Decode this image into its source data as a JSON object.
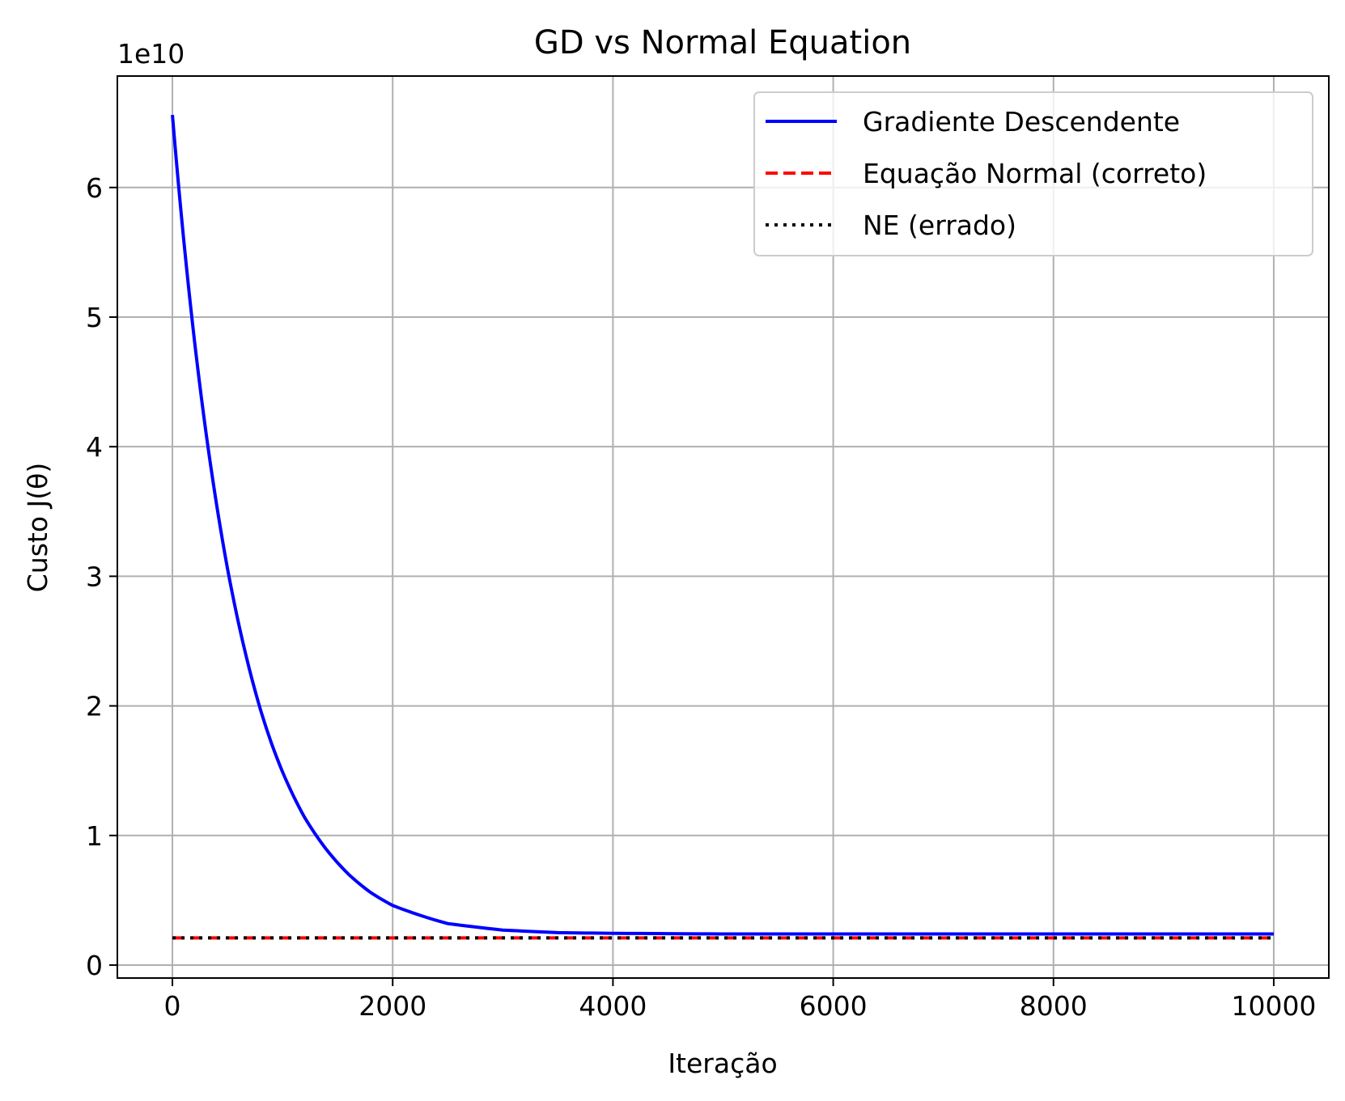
{
  "chart_data": {
    "type": "line",
    "title": "GD vs Normal Equation",
    "xlabel": "Iteração",
    "ylabel": "Custo J(θ)",
    "y_offset_label": "1e10",
    "xlim": [
      -500,
      10500
    ],
    "ylim": [
      -0.1,
      6.86
    ],
    "x_ticks": [
      0,
      2000,
      4000,
      6000,
      8000,
      10000
    ],
    "x_tick_labels": [
      "0",
      "2000",
      "4000",
      "6000",
      "8000",
      "10000"
    ],
    "y_ticks": [
      0,
      1,
      2,
      3,
      4,
      5,
      6
    ],
    "y_tick_labels": [
      "0",
      "1",
      "2",
      "3",
      "4",
      "5",
      "6"
    ],
    "grid": true,
    "legend_position": "top-right",
    "series": [
      {
        "name": "Gradiente Descendente",
        "style": "solid",
        "color": "#0000ff",
        "x": [
          0,
          100,
          200,
          300,
          400,
          500,
          600,
          700,
          800,
          900,
          1000,
          1200,
          1400,
          1600,
          1800,
          2000,
          2500,
          3000,
          3500,
          4000,
          5000,
          6000,
          7000,
          8000,
          9000,
          10000
        ],
        "values": [
          6.56,
          5.62,
          4.82,
          4.14,
          3.56,
          3.06,
          2.64,
          2.28,
          1.97,
          1.71,
          1.49,
          1.14,
          0.89,
          0.7,
          0.56,
          0.46,
          0.32,
          0.27,
          0.25,
          0.245,
          0.24,
          0.24,
          0.24,
          0.24,
          0.24,
          0.24
        ]
      },
      {
        "name": "Equação Normal (correto)",
        "style": "dashed",
        "color": "#ff0000",
        "x": [
          0,
          10000
        ],
        "values": [
          0.21,
          0.21
        ]
      },
      {
        "name": "NE (errado)",
        "style": "dotted",
        "color": "#000000",
        "x": [
          0,
          10000
        ],
        "values": [
          0.21,
          0.21
        ]
      }
    ]
  }
}
